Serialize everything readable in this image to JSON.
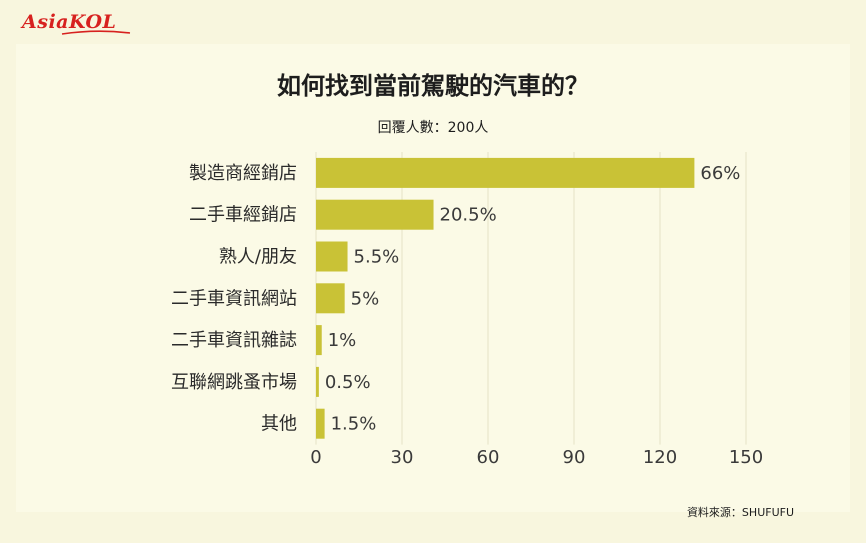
{
  "brand": {
    "logo": "AsiaKOL"
  },
  "header": {
    "title": "如何找到當前駕駛的汽車的？",
    "subtitle": "回覆人數：200人"
  },
  "footer": {
    "source": "資料來源：SHUFUFU"
  },
  "colors": {
    "bar": "#c9c236",
    "background": "#f8f6de",
    "grid": "#e6e3c6",
    "logo": "#d7211f"
  },
  "chart_data": {
    "type": "bar",
    "orientation": "horizontal",
    "title": "如何找到當前駕駛的汽車的？",
    "subtitle": "回覆人數：200人",
    "categories": [
      "製造商經銷店",
      "二手車經銷店",
      "熟人/朋友",
      "二手車資訊網站",
      "二手車資訊雜誌",
      "互聯網跳蚤市場",
      "其他"
    ],
    "values": [
      132,
      41,
      11,
      10,
      2,
      1,
      3
    ],
    "data_labels": [
      "66%",
      "20.5%",
      "5.5%",
      "5%",
      "1%",
      "0.5%",
      "1.5%"
    ],
    "x_ticks": [
      "0",
      "30",
      "60",
      "90",
      "120",
      "150"
    ],
    "xlim": [
      0,
      150
    ],
    "grid": true
  }
}
